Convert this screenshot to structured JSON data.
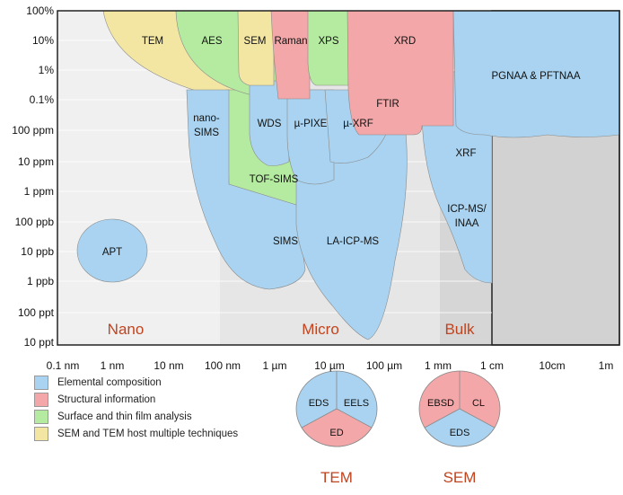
{
  "y_axis": [
    "100%",
    "10%",
    "1%",
    "0.1%",
    "100 ppm",
    "10 ppm",
    "1 ppm",
    "100 ppb",
    "10 ppb",
    "1 ppb",
    "100 ppt",
    "10 ppt"
  ],
  "x_axis": [
    "0.1 nm",
    "1 nm",
    "10 nm",
    "100 nm",
    "1 µm",
    "10 µm",
    "100 µm",
    "1 mm",
    "1 cm",
    "10cm",
    "1m"
  ],
  "regions": {
    "nano": "Nano",
    "micro": "Micro",
    "bulk": "Bulk"
  },
  "techniques": {
    "tem": "TEM",
    "aes": "AES",
    "sem": "SEM",
    "raman": "Raman",
    "xps": "XPS",
    "xrd": "XRD",
    "ftir": "FTIR",
    "pgnaa": "PGNAA & PFTNAA",
    "nanosims1": "nano-",
    "nanosims2": "SIMS",
    "wds": "WDS",
    "pixe": "µ-PIXE",
    "uxrf": "µ-XRF",
    "tofsims": "TOF-SIMS",
    "sims": "SIMS",
    "laicpms": "LA-ICP-MS",
    "xrf": "XRF",
    "icpms1": "ICP-MS/",
    "icpms2": "INAA",
    "apt": "APT"
  },
  "legend": [
    {
      "label": "Elemental composition",
      "color": "#a9d3f0"
    },
    {
      "label": "Structural information",
      "color": "#f3a7a9"
    },
    {
      "label": "Surface and thin film analysis",
      "color": "#b5eba0"
    },
    {
      "label": "SEM and TEM host multiple techniques",
      "color": "#f3e6a3"
    }
  ],
  "tem_pie": {
    "title": "TEM",
    "a": "EDS",
    "b": "EELS",
    "c": "ED"
  },
  "sem_pie": {
    "title": "SEM",
    "a": "EBSD",
    "b": "CL",
    "c": "EDS"
  },
  "colors": {
    "blue": "#a9d3f0",
    "red": "#f3a7a9",
    "green": "#b5eba0",
    "yellow": "#f3e6a3",
    "region_label": "#c0441f"
  }
}
